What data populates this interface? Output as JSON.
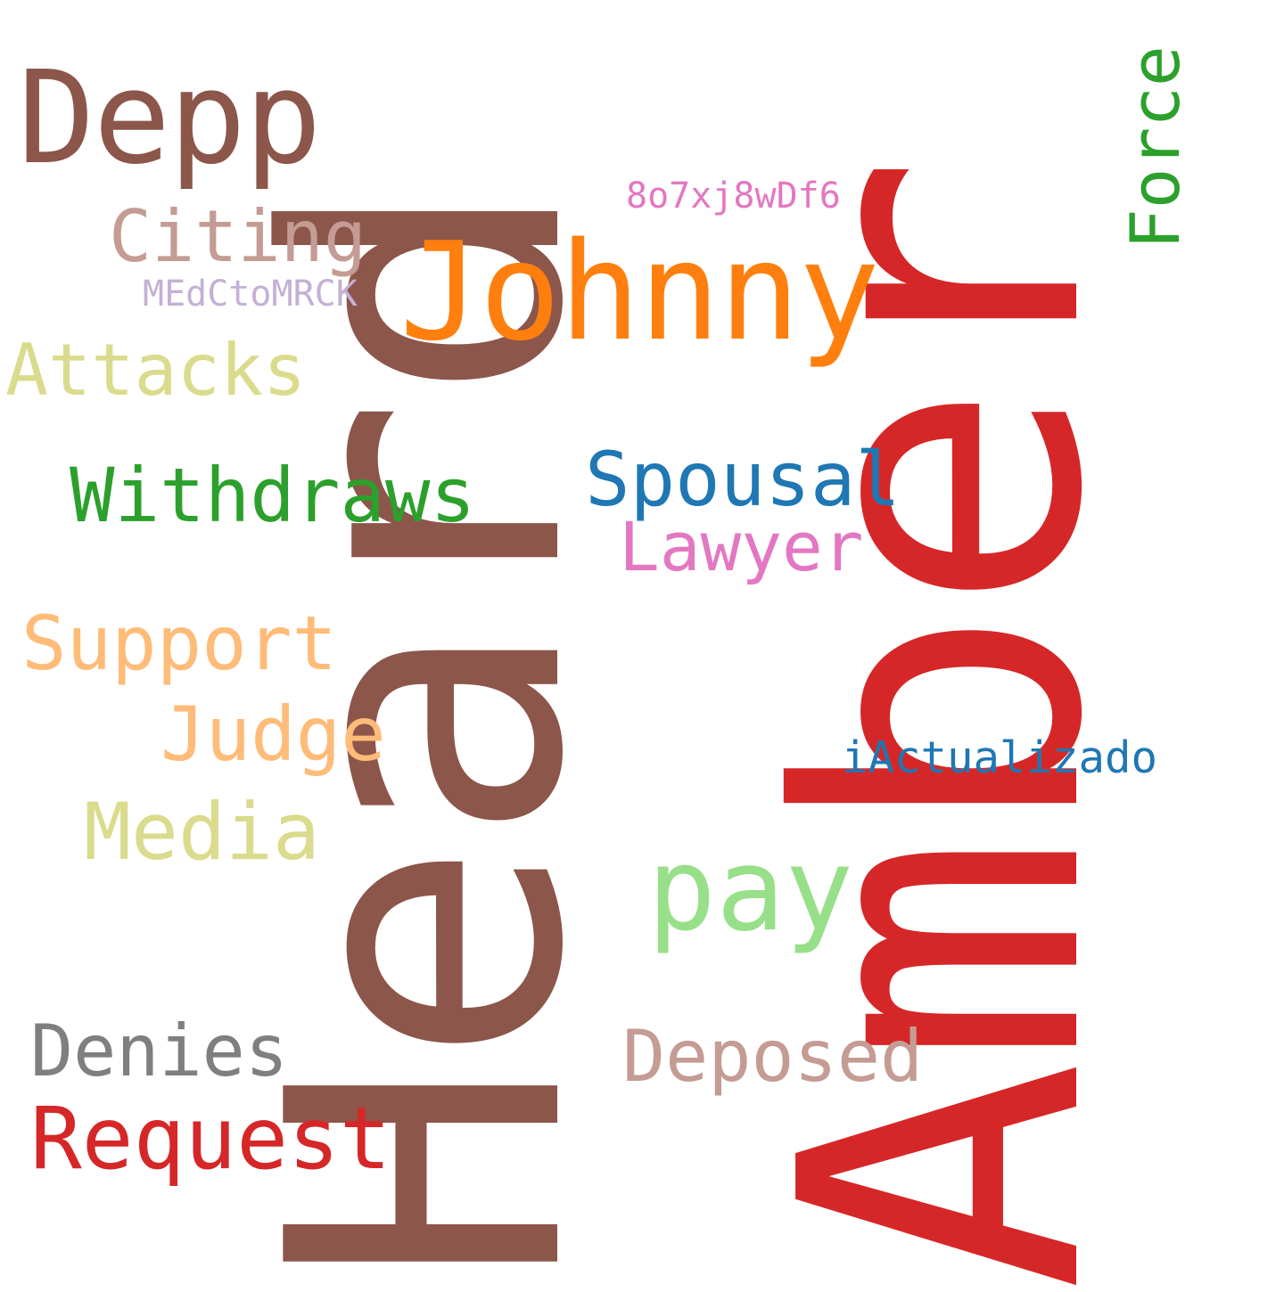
{
  "words": [
    {
      "id": "heard",
      "text": "Heard",
      "color": "#8c564b",
      "rotated": true
    },
    {
      "id": "amber",
      "text": "Amber",
      "color": "#d62728",
      "rotated": true
    },
    {
      "id": "johnny",
      "text": "Johnny",
      "color": "#ff7f0e",
      "rotated": false
    },
    {
      "id": "depp",
      "text": "Depp",
      "color": "#8c564b",
      "rotated": false
    },
    {
      "id": "force",
      "text": "Force",
      "color": "#2ca02c",
      "rotated": true
    },
    {
      "id": "code1",
      "text": "8o7xj8wDf6",
      "color": "#e377c2",
      "rotated": false
    },
    {
      "id": "citing",
      "text": "Citing",
      "color": "#c49c94",
      "rotated": false
    },
    {
      "id": "code2",
      "text": "MEdCtoMRCK",
      "color": "#c5b0d5",
      "rotated": false
    },
    {
      "id": "attacks",
      "text": "Attacks",
      "color": "#dbdb8d",
      "rotated": false
    },
    {
      "id": "withdraws",
      "text": "Withdraws",
      "color": "#2ca02c",
      "rotated": false
    },
    {
      "id": "spousal",
      "text": "Spousal",
      "color": "#1f77b4",
      "rotated": false
    },
    {
      "id": "lawyer",
      "text": "Lawyer",
      "color": "#e377c2",
      "rotated": false
    },
    {
      "id": "support",
      "text": "Support",
      "color": "#ffbb78",
      "rotated": false
    },
    {
      "id": "judge",
      "text": "Judge",
      "color": "#ffbb78",
      "rotated": false
    },
    {
      "id": "iactualizado",
      "text": "iActualizado",
      "color": "#1f77b4",
      "rotated": false
    },
    {
      "id": "media",
      "text": "Media",
      "color": "#dbdb8d",
      "rotated": false
    },
    {
      "id": "pay",
      "text": "pay",
      "color": "#98df8a",
      "rotated": false
    },
    {
      "id": "denies",
      "text": "Denies",
      "color": "#7f7f7f",
      "rotated": false
    },
    {
      "id": "deposed",
      "text": "Deposed",
      "color": "#c49c94",
      "rotated": false
    },
    {
      "id": "request",
      "text": "Request",
      "color": "#d62728",
      "rotated": false
    }
  ]
}
